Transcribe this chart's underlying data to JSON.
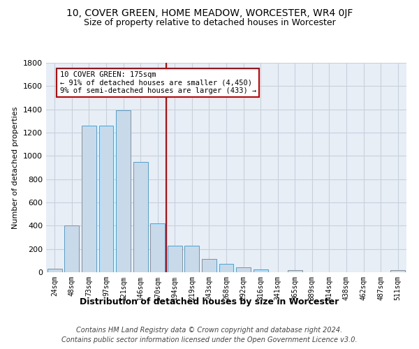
{
  "title": "10, COVER GREEN, HOME MEADOW, WORCESTER, WR4 0JF",
  "subtitle": "Size of property relative to detached houses in Worcester",
  "xlabel": "Distribution of detached houses by size in Worcester",
  "ylabel": "Number of detached properties",
  "bin_labels": [
    "24sqm",
    "48sqm",
    "73sqm",
    "97sqm",
    "121sqm",
    "146sqm",
    "170sqm",
    "194sqm",
    "219sqm",
    "243sqm",
    "268sqm",
    "292sqm",
    "316sqm",
    "341sqm",
    "365sqm",
    "389sqm",
    "414sqm",
    "438sqm",
    "462sqm",
    "487sqm",
    "511sqm"
  ],
  "bar_heights": [
    30,
    400,
    1260,
    1260,
    1390,
    950,
    420,
    230,
    230,
    115,
    75,
    40,
    25,
    0,
    20,
    0,
    0,
    0,
    0,
    0,
    20
  ],
  "bar_color": "#c8daea",
  "bar_edge_color": "#5b9dc8",
  "grid_color": "#c8d0dc",
  "background_color": "#e8eef5",
  "red_line_x": 7.0,
  "annotation_text": "10 COVER GREEN: 175sqm\n← 91% of detached houses are smaller (4,450)\n9% of semi-detached houses are larger (433) →",
  "annotation_box_color": "#ffffff",
  "annotation_border_color": "#cc0000",
  "property_line_color": "#cc0000",
  "footer_line1": "Contains HM Land Registry data © Crown copyright and database right 2024.",
  "footer_line2": "Contains public sector information licensed under the Open Government Licence v3.0.",
  "ylim": [
    0,
    1800
  ],
  "yticks": [
    0,
    200,
    400,
    600,
    800,
    1000,
    1200,
    1400,
    1600,
    1800
  ]
}
